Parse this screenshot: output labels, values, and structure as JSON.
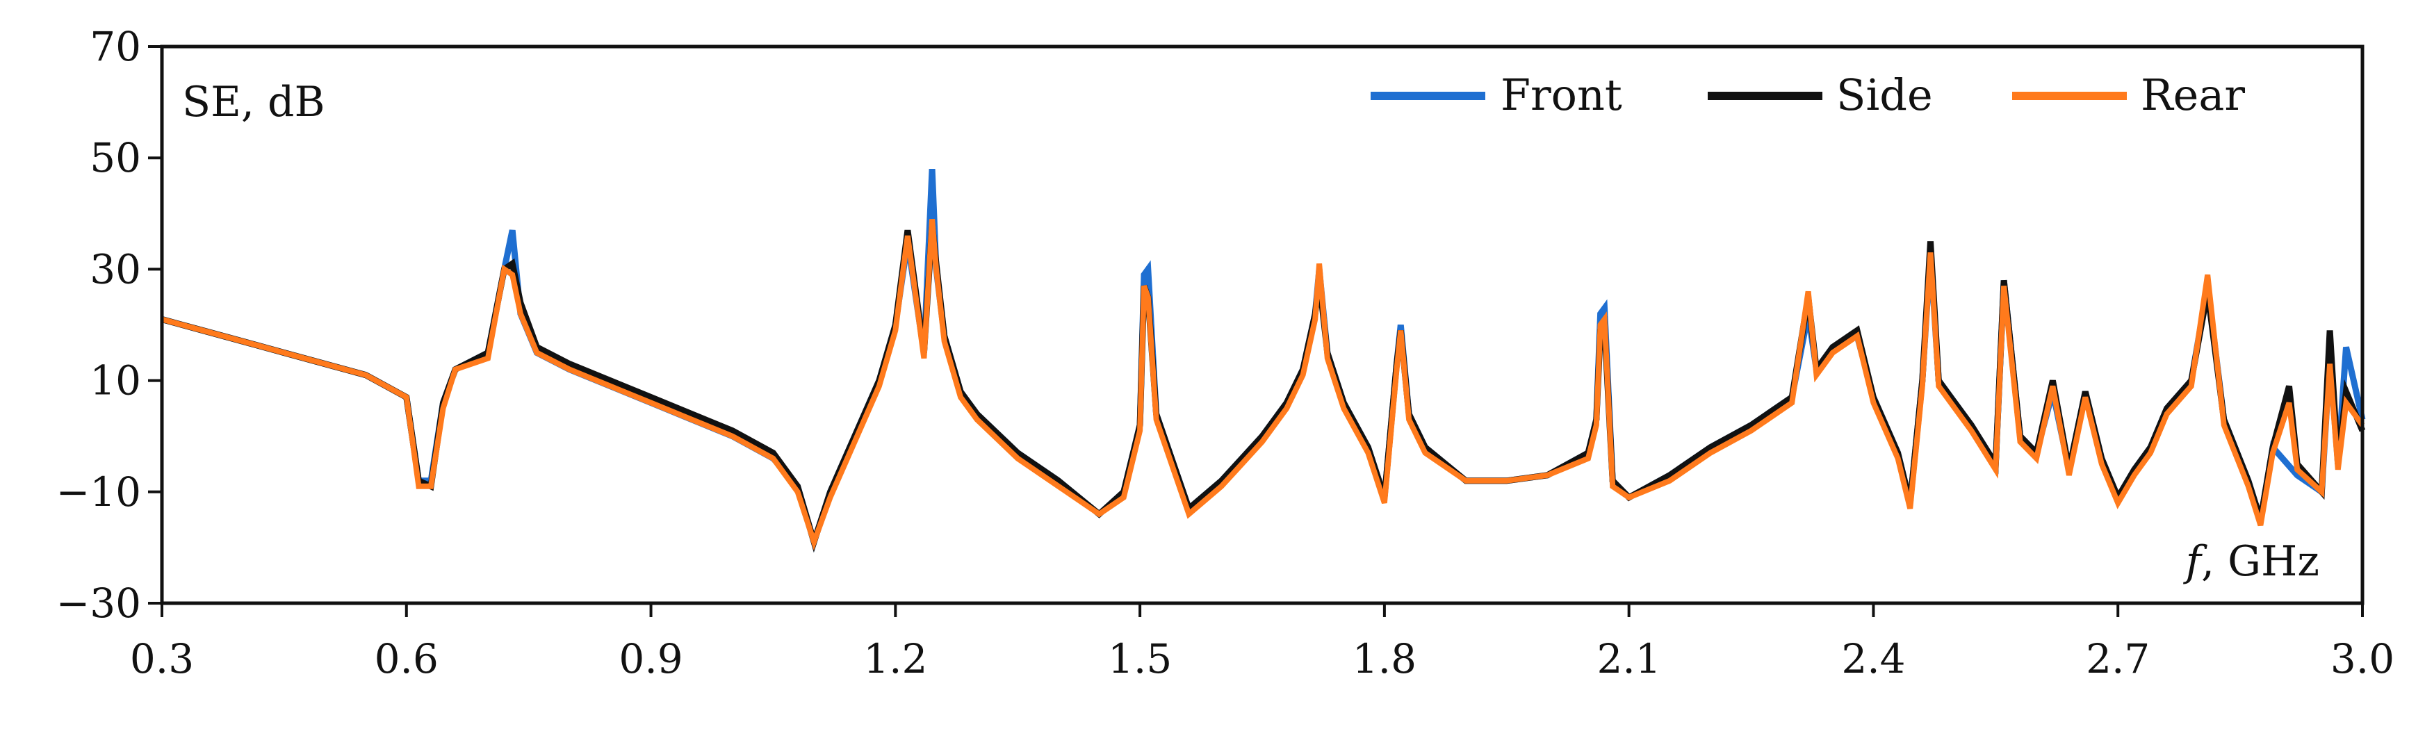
{
  "chart_data": {
    "type": "line",
    "ylabel": "SE,  dB",
    "xlabel": "f,  GHz",
    "xlabel_var": "f",
    "xlabel_unit": ",  GHz",
    "xlim": [
      0.3,
      3.0
    ],
    "ylim": [
      -30,
      70
    ],
    "x_ticks": [
      0.3,
      0.6,
      0.9,
      1.2,
      1.5,
      1.8,
      2.1,
      2.4,
      2.7,
      3.0
    ],
    "x_tick_labels": [
      "0.3",
      "0.6",
      "0.9",
      "1.2",
      "1.5",
      "1.8",
      "2.1",
      "2.4",
      "2.7",
      "3.0"
    ],
    "y_ticks": [
      -30,
      -10,
      10,
      30,
      50,
      70
    ],
    "y_tick_labels": [
      "−30",
      "−10",
      "10",
      "30",
      "50",
      "70"
    ],
    "grid": false,
    "legend_position": "top-right",
    "colors": {
      "Front": "#1f6fd1",
      "Side": "#111111",
      "Rear": "#ff7a1c"
    },
    "series": [
      {
        "name": "Front",
        "x": [
          0.3,
          0.35,
          0.4,
          0.45,
          0.5,
          0.55,
          0.6,
          0.615,
          0.63,
          0.645,
          0.66,
          0.7,
          0.72,
          0.73,
          0.74,
          0.76,
          0.8,
          0.85,
          0.9,
          0.95,
          1.0,
          1.05,
          1.08,
          1.1,
          1.12,
          1.15,
          1.18,
          1.2,
          1.215,
          1.225,
          1.235,
          1.245,
          1.25,
          1.26,
          1.28,
          1.3,
          1.35,
          1.4,
          1.45,
          1.48,
          1.5,
          1.505,
          1.51,
          1.52,
          1.56,
          1.6,
          1.65,
          1.68,
          1.7,
          1.715,
          1.72,
          1.73,
          1.75,
          1.78,
          1.8,
          1.815,
          1.82,
          1.83,
          1.85,
          1.9,
          1.95,
          2.0,
          2.05,
          2.06,
          2.065,
          2.07,
          2.08,
          2.1,
          2.15,
          2.2,
          2.25,
          2.3,
          2.32,
          2.33,
          2.35,
          2.38,
          2.4,
          2.43,
          2.445,
          2.46,
          2.47,
          2.48,
          2.5,
          2.52,
          2.55,
          2.56,
          2.58,
          2.6,
          2.62,
          2.64,
          2.66,
          2.68,
          2.7,
          2.72,
          2.74,
          2.76,
          2.79,
          2.81,
          2.83,
          2.86,
          2.875,
          2.89,
          2.92,
          2.95,
          2.96,
          2.97,
          2.98,
          3.0
        ],
        "y": [
          21,
          19,
          17,
          15,
          13,
          11,
          7,
          -8,
          -8,
          6,
          12,
          15,
          30,
          37,
          22,
          15,
          12,
          9,
          6,
          3,
          0,
          -4,
          -9,
          -19,
          -10,
          0,
          10,
          20,
          35,
          25,
          15,
          48,
          30,
          18,
          8,
          4,
          -3,
          -8,
          -14,
          -10,
          2,
          29,
          30,
          4,
          -13,
          -8,
          0,
          6,
          12,
          22,
          30,
          15,
          6,
          -2,
          -11,
          13,
          20,
          4,
          -2,
          -8,
          -8,
          -7,
          -3,
          3,
          22,
          23,
          -8,
          -11,
          -7,
          -2,
          2,
          7,
          22,
          12,
          16,
          18,
          7,
          -3,
          -12,
          10,
          33,
          10,
          6,
          2,
          -5,
          28,
          0,
          -3,
          8,
          -6,
          8,
          -4,
          -11,
          -6,
          -2,
          5,
          10,
          27,
          3,
          -8,
          -15,
          -2,
          -7,
          -10,
          14,
          -5,
          16,
          3
        ],
        "peak_values": [
          37,
          48,
          30,
          30,
          23
        ]
      },
      {
        "name": "Side",
        "x": [
          0.3,
          0.35,
          0.4,
          0.45,
          0.5,
          0.55,
          0.6,
          0.615,
          0.63,
          0.645,
          0.66,
          0.7,
          0.72,
          0.73,
          0.74,
          0.76,
          0.8,
          0.85,
          0.9,
          0.95,
          1.0,
          1.05,
          1.08,
          1.1,
          1.12,
          1.15,
          1.18,
          1.2,
          1.215,
          1.225,
          1.235,
          1.245,
          1.25,
          1.26,
          1.28,
          1.3,
          1.35,
          1.4,
          1.45,
          1.48,
          1.5,
          1.505,
          1.51,
          1.52,
          1.56,
          1.6,
          1.65,
          1.68,
          1.7,
          1.715,
          1.72,
          1.73,
          1.75,
          1.78,
          1.8,
          1.815,
          1.82,
          1.83,
          1.85,
          1.9,
          1.95,
          2.0,
          2.05,
          2.06,
          2.065,
          2.07,
          2.08,
          2.1,
          2.15,
          2.2,
          2.25,
          2.3,
          2.32,
          2.33,
          2.35,
          2.38,
          2.4,
          2.43,
          2.445,
          2.46,
          2.47,
          2.48,
          2.5,
          2.52,
          2.55,
          2.56,
          2.58,
          2.6,
          2.62,
          2.64,
          2.66,
          2.68,
          2.7,
          2.72,
          2.74,
          2.76,
          2.79,
          2.81,
          2.83,
          2.86,
          2.875,
          2.89,
          2.91,
          2.92,
          2.95,
          2.96,
          2.97,
          2.98,
          3.0
        ],
        "y": [
          21,
          19,
          17,
          15,
          13,
          11,
          7,
          -8,
          -9,
          6,
          12,
          15,
          30,
          31,
          24,
          16,
          13,
          10,
          7,
          4,
          1,
          -3,
          -9,
          -19,
          -10,
          0,
          10,
          20,
          37,
          26,
          15,
          38,
          31,
          18,
          8,
          4,
          -3,
          -8,
          -14,
          -10,
          2,
          27,
          25,
          4,
          -13,
          -8,
          0,
          6,
          12,
          22,
          28,
          15,
          6,
          -2,
          -11,
          13,
          19,
          4,
          -2,
          -8,
          -8,
          -7,
          -3,
          3,
          19,
          20,
          -8,
          -11,
          -7,
          -2,
          2,
          7,
          25,
          12,
          16,
          19,
          7,
          -3,
          -12,
          10,
          35,
          10,
          6,
          2,
          -5,
          28,
          0,
          -3,
          10,
          -6,
          8,
          -4,
          -11,
          -6,
          -2,
          5,
          10,
          26,
          3,
          -8,
          -15,
          -2,
          9,
          -5,
          -10,
          19,
          -5,
          8,
          1
        ]
      },
      {
        "name": "Rear",
        "x": [
          0.3,
          0.35,
          0.4,
          0.45,
          0.5,
          0.55,
          0.6,
          0.615,
          0.63,
          0.645,
          0.66,
          0.7,
          0.72,
          0.73,
          0.74,
          0.76,
          0.8,
          0.85,
          0.9,
          0.95,
          1.0,
          1.05,
          1.08,
          1.1,
          1.12,
          1.15,
          1.18,
          1.2,
          1.215,
          1.225,
          1.235,
          1.245,
          1.25,
          1.26,
          1.28,
          1.3,
          1.35,
          1.4,
          1.45,
          1.48,
          1.5,
          1.505,
          1.51,
          1.52,
          1.56,
          1.6,
          1.65,
          1.68,
          1.7,
          1.715,
          1.72,
          1.73,
          1.75,
          1.78,
          1.8,
          1.815,
          1.82,
          1.83,
          1.85,
          1.9,
          1.95,
          2.0,
          2.05,
          2.06,
          2.065,
          2.07,
          2.08,
          2.1,
          2.15,
          2.2,
          2.25,
          2.3,
          2.32,
          2.33,
          2.35,
          2.38,
          2.4,
          2.43,
          2.445,
          2.46,
          2.47,
          2.48,
          2.5,
          2.52,
          2.55,
          2.56,
          2.58,
          2.6,
          2.62,
          2.64,
          2.66,
          2.68,
          2.7,
          2.72,
          2.74,
          2.76,
          2.79,
          2.81,
          2.83,
          2.86,
          2.875,
          2.89,
          2.91,
          2.92,
          2.95,
          2.96,
          2.97,
          2.98,
          3.0
        ],
        "y": [
          21,
          19,
          17,
          15,
          13,
          11,
          7,
          -9,
          -9,
          5,
          12,
          14,
          30,
          29,
          22,
          15,
          12,
          9,
          6,
          3,
          0,
          -4,
          -10,
          -19,
          -11,
          -1,
          9,
          19,
          36,
          25,
          14,
          39,
          30,
          17,
          7,
          3,
          -4,
          -9,
          -14,
          -11,
          1,
          27,
          25,
          3,
          -14,
          -9,
          -1,
          5,
          11,
          21,
          31,
          14,
          5,
          -3,
          -12,
          12,
          19,
          3,
          -3,
          -8,
          -8,
          -7,
          -4,
          2,
          20,
          21,
          -9,
          -11,
          -8,
          -3,
          1,
          6,
          26,
          11,
          15,
          18,
          6,
          -4,
          -13,
          9,
          33,
          9,
          5,
          1,
          -6,
          27,
          -1,
          -4,
          9,
          -7,
          7,
          -5,
          -12,
          -7,
          -3,
          4,
          9,
          29,
          2,
          -9,
          -16,
          -3,
          6,
          -6,
          -10,
          13,
          -6,
          6,
          2
        ]
      }
    ]
  }
}
